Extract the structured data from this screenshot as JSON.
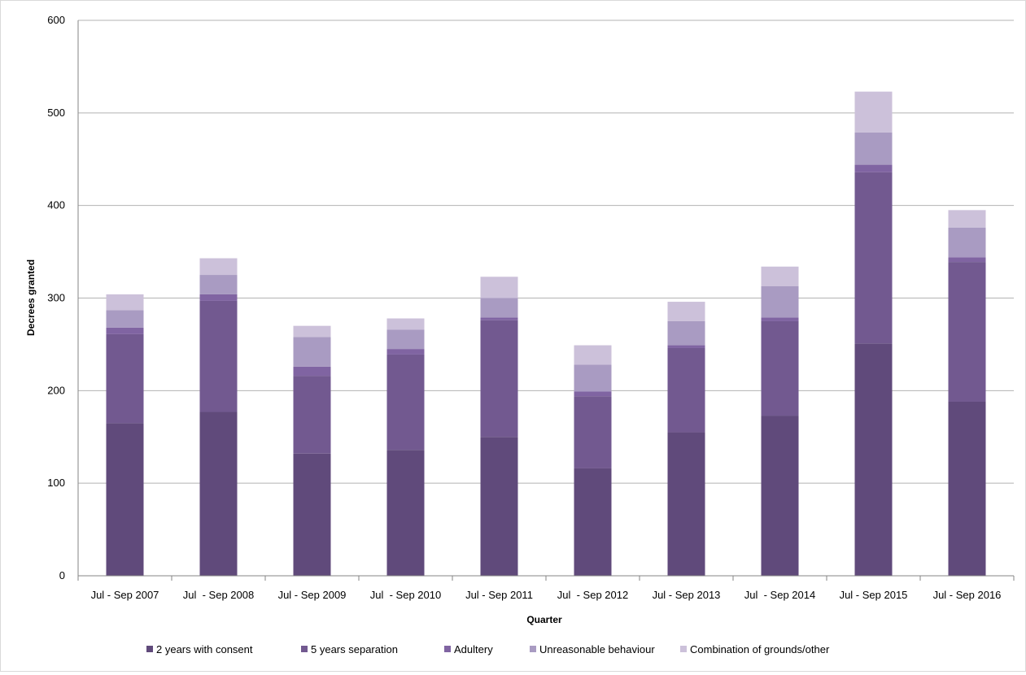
{
  "chart_data": {
    "type": "bar",
    "stacked": true,
    "title": "",
    "xlabel": "Quarter",
    "ylabel": "Decrees granted",
    "ylim": [
      0,
      600
    ],
    "yticks": [
      0,
      100,
      200,
      300,
      400,
      500,
      600
    ],
    "grid": true,
    "legend_position": "bottom",
    "categories": [
      "Jul - Sep 2007",
      "Jul  - Sep 2008",
      "Jul - Sep 2009",
      "Jul  - Sep 2010",
      "Jul - Sep 2011",
      "Jul  - Sep 2012",
      "Jul - Sep 2013",
      "Jul  - Sep 2014",
      "Jul - Sep 2015",
      "Jul - Sep 2016"
    ],
    "series": [
      {
        "name": "2 years with consent",
        "color": "#604a7b",
        "values": [
          165,
          177,
          132,
          136,
          150,
          116,
          155,
          173,
          251,
          188
        ]
      },
      {
        "name": "5 years separation",
        "color": "#725990",
        "values": [
          96,
          120,
          84,
          103,
          126,
          78,
          91,
          102,
          185,
          151
        ]
      },
      {
        "name": "Adultery",
        "color": "#8064a2",
        "values": [
          7,
          7,
          10,
          6,
          3,
          5,
          3,
          4,
          8,
          5
        ]
      },
      {
        "name": "Unreasonable behaviour",
        "color": "#a99bc2",
        "values": [
          19,
          21,
          32,
          21,
          21,
          29,
          26,
          34,
          35,
          32
        ]
      },
      {
        "name": "Combination of grounds/other",
        "color": "#ccc1da",
        "values": [
          17,
          18,
          12,
          12,
          23,
          21,
          21,
          21,
          44,
          19
        ]
      }
    ]
  }
}
